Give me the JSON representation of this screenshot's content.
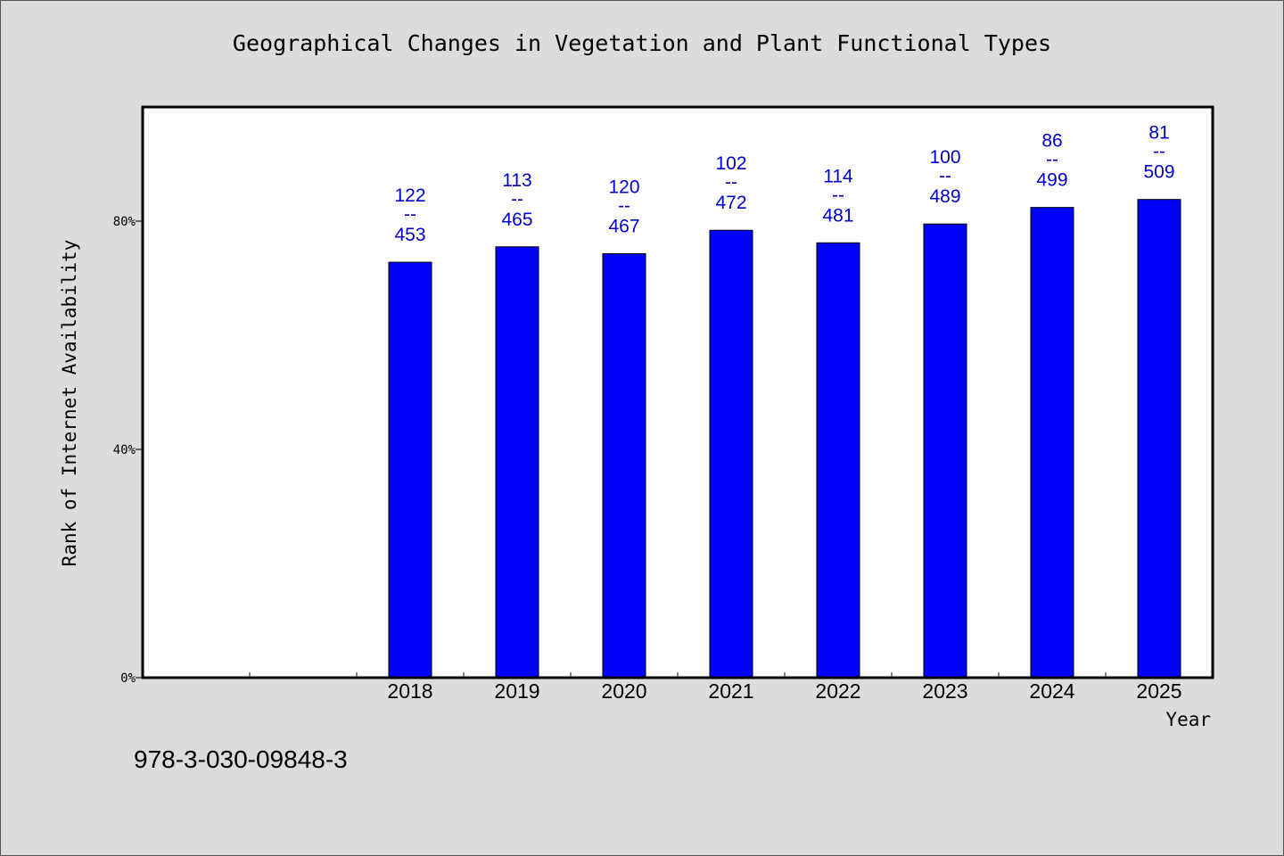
{
  "chart_data": {
    "type": "bar",
    "title": "Geographical Changes in Vegetation and Plant Functional Types",
    "xlabel": "Year",
    "ylabel": "Rank of Internet Availability",
    "categories": [
      "",
      "",
      "2018",
      "2019",
      "2020",
      "2021",
      "2022",
      "2023",
      "2024",
      "2025"
    ],
    "values": [
      null,
      null,
      72.8,
      75.5,
      74.3,
      78.4,
      76.2,
      79.5,
      82.4,
      83.8
    ],
    "bar_labels": [
      null,
      null,
      {
        "top": "122",
        "sep": "--",
        "bottom": "453"
      },
      {
        "top": "113",
        "sep": "--",
        "bottom": "465"
      },
      {
        "top": "120",
        "sep": "--",
        "bottom": "467"
      },
      {
        "top": "102",
        "sep": "--",
        "bottom": "472"
      },
      {
        "top": "114",
        "sep": "--",
        "bottom": "481"
      },
      {
        "top": "100",
        "sep": "--",
        "bottom": "489"
      },
      {
        "top": "86",
        "sep": "--",
        "bottom": "499"
      },
      {
        "top": "81",
        "sep": "--",
        "bottom": "509"
      }
    ],
    "yticks": [
      0,
      40,
      80
    ],
    "ytick_labels": [
      "0%",
      "40%",
      "80%"
    ],
    "ylim": [
      0,
      100
    ],
    "grid": false,
    "bar_color": "#0000ff",
    "label_color": "#0000cc"
  },
  "footer": {
    "isbn": "978-3-030-09848-3"
  }
}
